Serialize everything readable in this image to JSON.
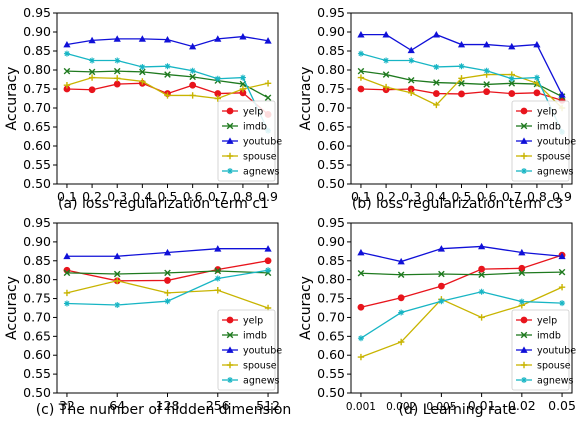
{
  "colors": {
    "yelp": "#e8141c",
    "imdb": "#1f7a1f",
    "youtube": "#1010d8",
    "spouse": "#c8b400",
    "agnews": "#17b5c4"
  },
  "chart_data": [
    {
      "type": "line",
      "caption": "(a) loss regularization term c1",
      "ylabel": "Accuracy",
      "xlabel": "",
      "ylim": [
        0.5,
        0.95
      ],
      "yticks": [
        "0.50",
        "0.55",
        "0.60",
        "0.65",
        "0.70",
        "0.75",
        "0.80",
        "0.85",
        "0.90",
        "0.95"
      ],
      "categories": [
        "0.1",
        "0.2",
        "0.3",
        "0.4",
        "0.5",
        "0.6",
        "0.7",
        "0.8",
        "0.9"
      ],
      "legend_position": "lower-right",
      "series": [
        {
          "name": "yelp",
          "values": [
            0.75,
            0.748,
            0.763,
            0.765,
            0.738,
            0.76,
            0.738,
            0.74,
            0.683
          ]
        },
        {
          "name": "imdb",
          "values": [
            0.797,
            0.795,
            0.797,
            0.795,
            0.788,
            0.782,
            0.772,
            0.763,
            0.727
          ]
        },
        {
          "name": "youtube",
          "values": [
            0.867,
            0.878,
            0.882,
            0.882,
            0.88,
            0.862,
            0.882,
            0.888,
            0.877
          ]
        },
        {
          "name": "spouse",
          "values": [
            0.76,
            0.78,
            0.778,
            0.77,
            0.733,
            0.733,
            0.725,
            0.75,
            0.765
          ]
        },
        {
          "name": "agnews",
          "values": [
            0.843,
            0.825,
            0.825,
            0.808,
            0.81,
            0.798,
            0.777,
            0.78,
            0.64
          ]
        }
      ]
    },
    {
      "type": "line",
      "caption": "(b) loss regularization term c3",
      "ylabel": "Accuracy",
      "xlabel": "",
      "ylim": [
        0.5,
        0.95
      ],
      "yticks": [
        "0.50",
        "0.55",
        "0.60",
        "0.65",
        "0.70",
        "0.75",
        "0.80",
        "0.85",
        "0.90",
        "0.95"
      ],
      "categories": [
        "0.1",
        "0.2",
        "0.3",
        "0.4",
        "0.5",
        "0.6",
        "0.7",
        "0.8",
        "0.9"
      ],
      "legend_position": "lower-right",
      "series": [
        {
          "name": "yelp",
          "values": [
            0.75,
            0.748,
            0.75,
            0.738,
            0.737,
            0.743,
            0.738,
            0.74,
            0.72
          ]
        },
        {
          "name": "imdb",
          "values": [
            0.797,
            0.788,
            0.773,
            0.767,
            0.765,
            0.762,
            0.765,
            0.763,
            0.73
          ]
        },
        {
          "name": "youtube",
          "values": [
            0.893,
            0.893,
            0.852,
            0.893,
            0.867,
            0.867,
            0.862,
            0.867,
            0.735
          ]
        },
        {
          "name": "spouse",
          "values": [
            0.78,
            0.755,
            0.74,
            0.708,
            0.778,
            0.788,
            0.788,
            0.765,
            0.7
          ]
        },
        {
          "name": "agnews",
          "values": [
            0.843,
            0.825,
            0.825,
            0.808,
            0.81,
            0.798,
            0.777,
            0.78,
            0.637
          ]
        }
      ]
    },
    {
      "type": "line",
      "caption": "(c) The number of hidden dimension",
      "ylabel": "Accuracy",
      "xlabel": "",
      "ylim": [
        0.5,
        0.95
      ],
      "yticks": [
        "0.50",
        "0.55",
        "0.60",
        "0.65",
        "0.70",
        "0.75",
        "0.80",
        "0.85",
        "0.90",
        "0.95"
      ],
      "categories": [
        "32",
        "64",
        "128",
        "256",
        "512"
      ],
      "legend_position": "lower-right",
      "series": [
        {
          "name": "yelp",
          "values": [
            0.825,
            0.797,
            0.798,
            0.827,
            0.85
          ]
        },
        {
          "name": "imdb",
          "values": [
            0.818,
            0.815,
            0.818,
            0.823,
            0.818
          ]
        },
        {
          "name": "youtube",
          "values": [
            0.862,
            0.862,
            0.872,
            0.882,
            0.882
          ]
        },
        {
          "name": "spouse",
          "values": [
            0.765,
            0.797,
            0.765,
            0.772,
            0.725
          ]
        },
        {
          "name": "agnews",
          "values": [
            0.737,
            0.733,
            0.743,
            0.803,
            0.825
          ]
        }
      ]
    },
    {
      "type": "line",
      "caption": "(d) Learning rate",
      "ylabel": "Accuracy",
      "xlabel": "",
      "ylim": [
        0.5,
        0.95
      ],
      "yticks": [
        "0.50",
        "0.55",
        "0.60",
        "0.65",
        "0.70",
        "0.75",
        "0.80",
        "0.85",
        "0.90",
        "0.95"
      ],
      "categories": [
        "0.001",
        "0.002",
        "0.005",
        "0.01",
        "0.02",
        "0.05"
      ],
      "legend_position": "lower-right",
      "series": [
        {
          "name": "yelp",
          "values": [
            0.727,
            0.752,
            0.783,
            0.828,
            0.83,
            0.865
          ]
        },
        {
          "name": "imdb",
          "values": [
            0.817,
            0.813,
            0.815,
            0.813,
            0.818,
            0.82
          ]
        },
        {
          "name": "youtube",
          "values": [
            0.872,
            0.848,
            0.882,
            0.888,
            0.872,
            0.862
          ]
        },
        {
          "name": "spouse",
          "values": [
            0.595,
            0.635,
            0.748,
            0.7,
            0.732,
            0.78
          ]
        },
        {
          "name": "agnews",
          "values": [
            0.645,
            0.713,
            0.743,
            0.768,
            0.742,
            0.738
          ]
        }
      ]
    }
  ]
}
